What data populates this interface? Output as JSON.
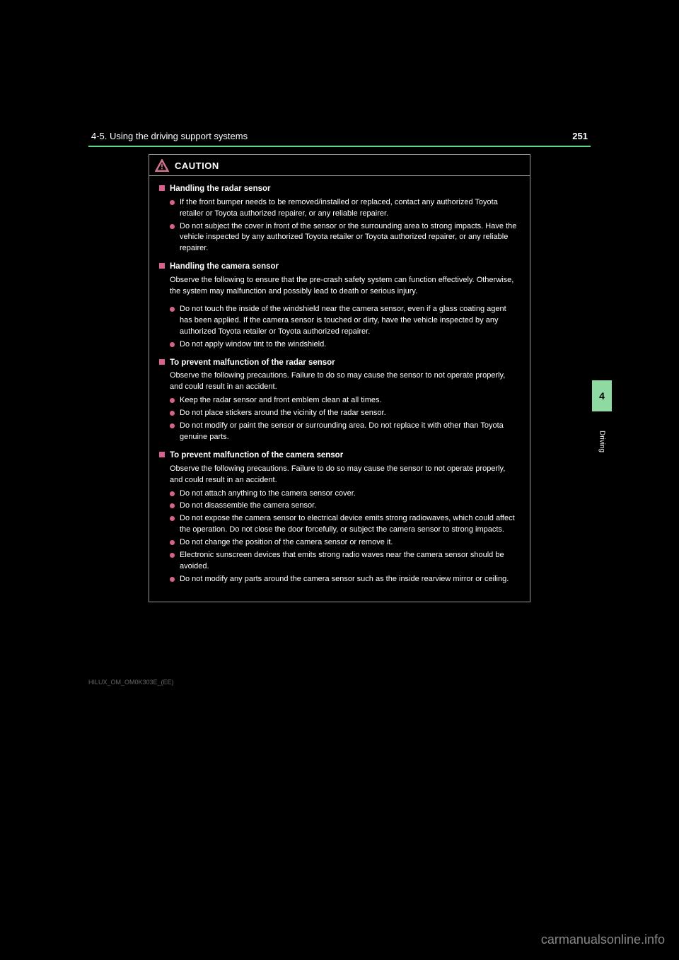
{
  "colors": {
    "background": "#000000",
    "text": "#ffffff",
    "rule": "#5fd68a",
    "accent": "#d8628f",
    "tab_bg": "#8fd9a3",
    "tab_text": "#000000",
    "border": "#999999",
    "watermark": "#888888",
    "footer": "#666666"
  },
  "header": {
    "page_number": "251",
    "section": "4-5. Using the driving support systems"
  },
  "tab": {
    "number": "4",
    "label": "Driving"
  },
  "caution": {
    "title": "CAUTION",
    "sections": [
      {
        "title": "Handling the radar sensor",
        "intro": null,
        "bullets": [
          "If the front bumper needs to be removed/installed or replaced, contact any authorized Toyota retailer or Toyota authorized repairer, or any reliable repairer.",
          "Do not subject the cover in front of the sensor or the surrounding area to strong impacts. Have the vehicle inspected by any authorized Toyota retailer or Toyota authorized repairer, or any reliable repairer."
        ]
      },
      {
        "title": "Handling the camera sensor",
        "intro": "Observe the following to ensure that the pre-crash safety system can function effectively. Otherwise, the system may malfunction and possibly lead to death or serious injury.",
        "bullets": []
      },
      {
        "title": "",
        "intro": null,
        "bullets": [
          "Do not touch the inside of the windshield near the camera sensor, even if a glass coating agent has been applied. If the camera sensor is touched or dirty, have the vehicle inspected by any authorized Toyota retailer or Toyota authorized repairer.",
          "Do not apply window tint to the windshield."
        ]
      },
      {
        "title": "To prevent malfunction of the radar sensor",
        "intro": "Observe the following precautions. Failure to do so may cause the sensor to not operate properly, and could result in an accident.",
        "bullets": [
          "Keep the radar sensor and front emblem clean at all times.",
          "Do not place stickers around the vicinity of the radar sensor.",
          "Do not modify or paint the sensor or surrounding area. Do not replace it with other than Toyota genuine parts."
        ]
      },
      {
        "title": "To prevent malfunction of the camera sensor",
        "intro": "Observe the following precautions. Failure to do so may cause the sensor to not operate properly, and could result in an accident.",
        "bullets": [
          "Do not attach anything to the camera sensor cover.",
          "Do not disassemble the camera sensor.",
          "Do not expose the camera sensor to electrical device emits strong radiowaves, which could affect the operation. Do not close the door forcefully, or subject the camera sensor to strong impacts.",
          "Do not change the position of the camera sensor or remove it.",
          "Electronic sunscreen devices that emits strong radio waves near the camera sensor should be avoided.",
          "Do not modify any parts around the camera sensor such as the inside rearview mirror or ceiling."
        ]
      }
    ]
  },
  "footer_code": "HILUX_OM_OM0K303E_(EE)",
  "watermark": "carmanualsonline.info"
}
